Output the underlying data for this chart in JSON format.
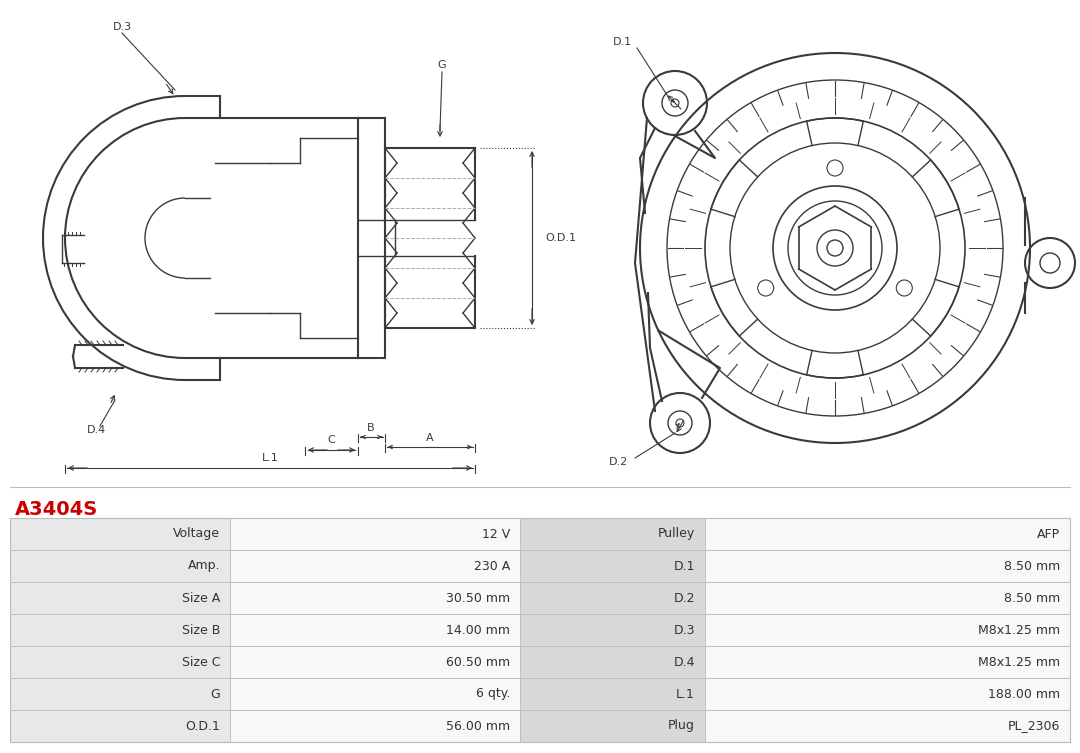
{
  "title": "A3404S",
  "title_color": "#cc0000",
  "background_color": "#ffffff",
  "table_data": [
    [
      "Voltage",
      "12 V",
      "Pulley",
      "AFP"
    ],
    [
      "Amp.",
      "230 A",
      "D.1",
      "8.50 mm"
    ],
    [
      "Size A",
      "30.50 mm",
      "D.2",
      "8.50 mm"
    ],
    [
      "Size B",
      "14.00 mm",
      "D.3",
      "M8x1.25 mm"
    ],
    [
      "Size C",
      "60.50 mm",
      "D.4",
      "M8x1.25 mm"
    ],
    [
      "G",
      "6 qty.",
      "L.1",
      "188.00 mm"
    ],
    [
      "O.D.1",
      "56.00 mm",
      "Plug",
      "PL_2306"
    ]
  ],
  "line_color": "#3a3a3a",
  "dim_color": "#3a3a3a",
  "col1_bg": "#e8e8e8",
  "col2_bg": "#f8f8f8",
  "col3_bg": "#d8d8d8",
  "col4_bg": "#f8f8f8"
}
